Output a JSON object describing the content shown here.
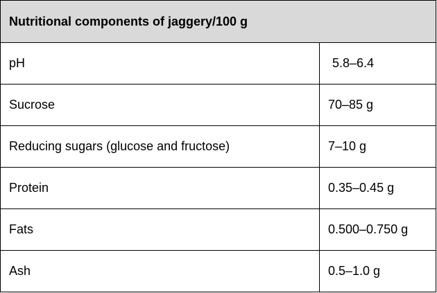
{
  "table": {
    "title": "Nutritional components of jaggery/100 g",
    "rows": [
      [
        "pH",
        "5.8–6.4"
      ],
      [
        "Sucrose",
        "70–85 g"
      ],
      [
        "Reducing sugars (glucose and fructose)",
        "7–10 g"
      ],
      [
        "Protein",
        "0.35–0.45 g"
      ],
      [
        "Fats",
        "0.500–0.750 g"
      ],
      [
        "Ash",
        "0.5–1.0 g"
      ]
    ]
  }
}
